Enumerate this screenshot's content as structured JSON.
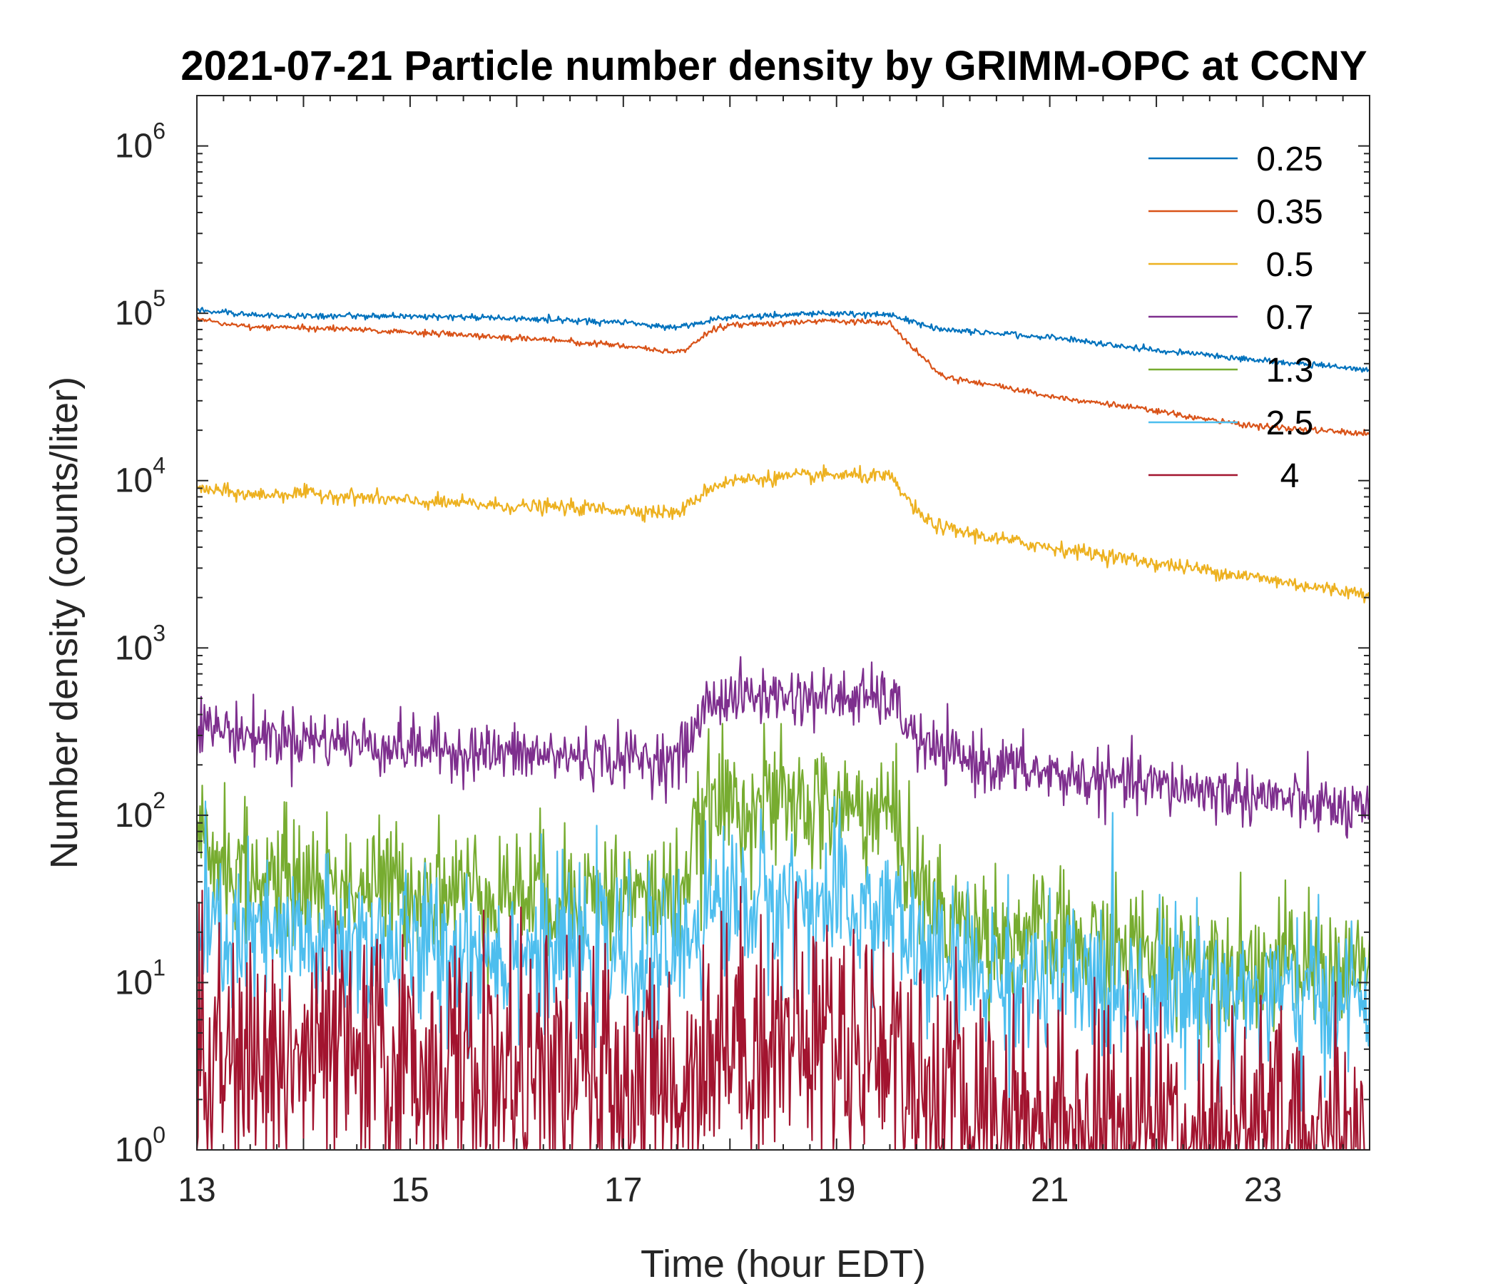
{
  "chart_data": {
    "type": "line",
    "title": "2021-07-21 Particle number density by GRIMM-OPC at CCNY",
    "xlabel": "Time (hour EDT)",
    "ylabel": "Number density (counts/liter)",
    "xlim": [
      13,
      24
    ],
    "ylim": [
      1,
      2000000
    ],
    "yscale": "log",
    "xticks": [
      13,
      15,
      17,
      19,
      21,
      23
    ],
    "yticks": [
      {
        "base": "10",
        "exp": "0",
        "value": 1
      },
      {
        "base": "10",
        "exp": "1",
        "value": 10
      },
      {
        "base": "10",
        "exp": "2",
        "value": 100
      },
      {
        "base": "10",
        "exp": "3",
        "value": 1000
      },
      {
        "base": "10",
        "exp": "4",
        "value": 10000
      },
      {
        "base": "10",
        "exp": "5",
        "value": 100000
      },
      {
        "base": "10",
        "exp": "6",
        "value": 1000000
      }
    ],
    "legend_position": "top-right",
    "x": [
      13,
      13.5,
      14,
      14.5,
      15,
      15.5,
      16,
      16.5,
      17,
      17.5,
      17.6,
      17.8,
      18,
      18.5,
      19,
      19.5,
      19.8,
      20,
      20.5,
      21,
      21.5,
      22,
      22.5,
      23,
      23.5,
      24
    ],
    "series": [
      {
        "name": "0.25",
        "color": "#0072BD",
        "noise": 0.02,
        "values": [
          105000,
          98000,
          96000,
          97000,
          96000,
          95000,
          93000,
          91000,
          88000,
          82000,
          84000,
          90000,
          95000,
          98000,
          100000,
          98000,
          85000,
          80000,
          76000,
          72000,
          66000,
          60000,
          56000,
          52000,
          49000,
          46000
        ]
      },
      {
        "name": "0.35",
        "color": "#D95319",
        "noise": 0.02,
        "values": [
          92000,
          83000,
          82000,
          80000,
          77000,
          74000,
          71000,
          68000,
          64000,
          58000,
          62000,
          78000,
          85000,
          88000,
          90000,
          88000,
          55000,
          42000,
          37000,
          32000,
          29000,
          26000,
          23000,
          21000,
          20000,
          19000
        ]
      },
      {
        "name": "0.5",
        "color": "#EDB120",
        "noise": 0.05,
        "values": [
          9000,
          8200,
          8400,
          8000,
          7500,
          7300,
          7000,
          6900,
          6700,
          6400,
          7000,
          9000,
          10000,
          10500,
          10800,
          10500,
          6000,
          5200,
          4500,
          4000,
          3600,
          3200,
          2900,
          2600,
          2300,
          2100
        ]
      },
      {
        "name": "0.7",
        "color": "#7E2F8E",
        "noise": 0.2,
        "values": [
          350,
          300,
          290,
          270,
          255,
          245,
          230,
          225,
          220,
          215,
          260,
          480,
          510,
          520,
          500,
          500,
          260,
          230,
          200,
          175,
          160,
          150,
          140,
          130,
          115,
          100
        ]
      },
      {
        "name": "1.3",
        "color": "#77AC30",
        "noise": 0.45,
        "values": [
          70,
          42,
          40,
          38,
          37,
          36,
          35,
          34,
          33,
          32,
          45,
          110,
          120,
          115,
          110,
          105,
          35,
          25,
          20,
          18,
          16,
          15,
          14,
          13,
          12,
          12
        ]
      },
      {
        "name": "2.5",
        "color": "#4DBEEE",
        "noise": 0.55,
        "values": [
          20,
          18,
          17,
          17,
          16,
          16,
          15,
          15,
          15,
          14,
          20,
          28,
          30,
          30,
          28,
          26,
          15,
          12,
          11,
          10,
          10,
          9,
          9,
          8,
          8,
          8
        ]
      },
      {
        "name": "4",
        "color": "#A2142F",
        "noise": 0.9,
        "values": [
          3,
          3.2,
          3.5,
          3.3,
          3.2,
          3,
          2.8,
          2.6,
          2.5,
          2.3,
          2.8,
          4.5,
          4.8,
          4.7,
          4.6,
          4.5,
          2.2,
          1.8,
          1.6,
          1.5,
          1.4,
          1.4,
          1.3,
          1.3,
          1.2,
          1.2
        ]
      }
    ]
  }
}
